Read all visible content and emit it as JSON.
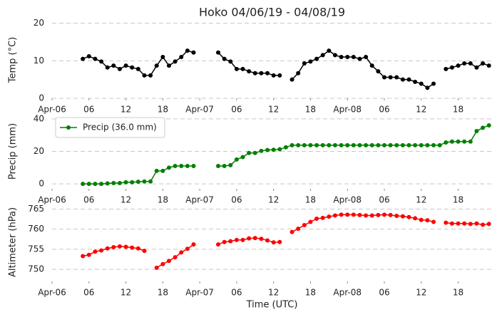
{
  "chart_data": [
    {
      "type": "line",
      "title": "Hoko 04/06/19 - 04/08/19",
      "ylabel": "Temp (°C)",
      "color": "#000000",
      "x": [
        5,
        6,
        7,
        8,
        9,
        10,
        11,
        12,
        13,
        14,
        15,
        16,
        17,
        18,
        19,
        20,
        21,
        22,
        23,
        24,
        25,
        26,
        27,
        28,
        29,
        30,
        31,
        32,
        33,
        34,
        35,
        36,
        37,
        38,
        39,
        40,
        41,
        42,
        43,
        44,
        45,
        46,
        47,
        48,
        49,
        50,
        51,
        52,
        53,
        54,
        55,
        56,
        57,
        58,
        59,
        60,
        61,
        62,
        63,
        64,
        65,
        66,
        67,
        68,
        69,
        70,
        71
      ],
      "values": [
        10.5,
        11.2,
        10.5,
        9.8,
        8.2,
        8.7,
        7.8,
        8.7,
        8.2,
        7.8,
        6.1,
        6.1,
        8.7,
        11,
        8.7,
        9.8,
        11,
        12.7,
        12.2,
        null,
        null,
        null,
        12.2,
        10.5,
        9.8,
        7.8,
        7.8,
        7.2,
        6.7,
        6.7,
        6.7,
        6.1,
        6.1,
        null,
        5.0,
        6.7,
        9.3,
        9.8,
        10.5,
        11.5,
        12.7,
        11.5,
        11,
        11,
        11,
        10.5,
        11,
        8.7,
        7.2,
        5.6,
        5.6,
        5.6,
        5,
        5,
        4.4,
        3.9,
        2.8,
        3.9,
        null,
        7.8,
        8.2,
        8.7,
        9.3,
        9.3,
        8.2,
        9.3,
        8.7
      ],
      "xlim": [
        0,
        71.5
      ],
      "xticks": [
        {
          "value": 0,
          "label": "Apr-06"
        },
        {
          "value": 6,
          "label": "06"
        },
        {
          "value": 12,
          "label": "12"
        },
        {
          "value": 18,
          "label": "18"
        },
        {
          "value": 24,
          "label": "Apr-07"
        },
        {
          "value": 30,
          "label": "06"
        },
        {
          "value": 36,
          "label": "12"
        },
        {
          "value": 42,
          "label": "18"
        },
        {
          "value": 48,
          "label": "Apr-08"
        },
        {
          "value": 54,
          "label": "06"
        },
        {
          "value": 60,
          "label": "12"
        },
        {
          "value": 66,
          "label": "18"
        }
      ],
      "ylim": [
        0,
        20.5
      ],
      "yticks": [
        0,
        10,
        20
      ],
      "grid": true
    },
    {
      "type": "line",
      "ylabel": "Precip (mm)",
      "legend": "upper left",
      "x": [
        5,
        6,
        7,
        8,
        9,
        10,
        11,
        12,
        13,
        14,
        15,
        16,
        17,
        18,
        19,
        20,
        21,
        22,
        23,
        24,
        25,
        26,
        27,
        28,
        29,
        30,
        31,
        32,
        33,
        34,
        35,
        36,
        37,
        38,
        39,
        40,
        41,
        42,
        43,
        44,
        45,
        46,
        47,
        48,
        49,
        50,
        51,
        52,
        53,
        54,
        55,
        56,
        57,
        58,
        59,
        60,
        61,
        62,
        63,
        64,
        65,
        66,
        67,
        68,
        69,
        70,
        71
      ],
      "series": [
        {
          "name": "Precip (36.0 mm)",
          "color": "#008000",
          "values": [
            0,
            0,
            0,
            0,
            0.3,
            0.5,
            0.5,
            1,
            1,
            1.3,
            1.5,
            1.5,
            8,
            8,
            10,
            11,
            11,
            11,
            11,
            null,
            null,
            null,
            11,
            11,
            11.5,
            15,
            16.5,
            19,
            19,
            20.3,
            20.8,
            21,
            21.3,
            22.5,
            23.8,
            23.8,
            23.8,
            23.8,
            23.8,
            23.8,
            23.8,
            23.8,
            23.8,
            23.8,
            23.8,
            23.8,
            23.8,
            23.8,
            23.8,
            23.8,
            23.8,
            23.8,
            23.8,
            23.8,
            23.8,
            23.8,
            23.8,
            23.8,
            23.8,
            25.5,
            26,
            26,
            26,
            26,
            32.5,
            34.5,
            36
          ]
        }
      ],
      "xlim": [
        0,
        71.5
      ],
      "xticks": [
        {
          "value": 0,
          "label": "Apr-06"
        },
        {
          "value": 6,
          "label": "06"
        },
        {
          "value": 12,
          "label": "12"
        },
        {
          "value": 18,
          "label": "18"
        },
        {
          "value": 24,
          "label": "Apr-07"
        },
        {
          "value": 30,
          "label": "06"
        },
        {
          "value": 36,
          "label": "12"
        },
        {
          "value": 42,
          "label": "18"
        },
        {
          "value": 48,
          "label": "Apr-08"
        },
        {
          "value": 54,
          "label": "06"
        },
        {
          "value": 60,
          "label": "12"
        },
        {
          "value": 66,
          "label": "18"
        }
      ],
      "ylim": [
        -3,
        43
      ],
      "yticks": [
        0,
        20,
        40
      ],
      "grid": true
    },
    {
      "type": "line",
      "ylabel": "Altimeter (hPa)",
      "xlabel": "Time (UTC)",
      "color": "#ff0000",
      "x": [
        5,
        6,
        7,
        8,
        9,
        10,
        11,
        12,
        13,
        14,
        15,
        16,
        17,
        18,
        19,
        20,
        21,
        22,
        23,
        24,
        25,
        26,
        27,
        28,
        29,
        30,
        31,
        32,
        33,
        34,
        35,
        36,
        37,
        38,
        39,
        40,
        41,
        42,
        43,
        44,
        45,
        46,
        47,
        48,
        49,
        50,
        51,
        52,
        53,
        54,
        55,
        56,
        57,
        58,
        59,
        60,
        61,
        62,
        63,
        64,
        65,
        66,
        67,
        68,
        69,
        70,
        71
      ],
      "values": [
        753.3,
        753.6,
        754.4,
        754.7,
        755.2,
        755.5,
        755.7,
        755.6,
        755.4,
        755.2,
        754.6,
        null,
        750.4,
        751.3,
        752.1,
        753.0,
        754.2,
        755.1,
        756.2,
        null,
        null,
        null,
        756.2,
        756.8,
        757.0,
        757.3,
        757.3,
        757.7,
        757.8,
        757.6,
        757.2,
        756.7,
        756.8,
        null,
        759.3,
        760.1,
        761.0,
        761.8,
        762.6,
        762.8,
        763.1,
        763.4,
        763.6,
        763.6,
        763.6,
        763.5,
        763.4,
        763.4,
        763.5,
        763.6,
        763.5,
        763.3,
        763.2,
        763.0,
        762.7,
        762.3,
        762.2,
        761.8,
        null,
        761.6,
        761.4,
        761.4,
        761.4,
        761.3,
        761.4,
        761.1,
        761.3
      ],
      "xlim": [
        0,
        71.5
      ],
      "xticks": [
        {
          "value": 0,
          "label": "Apr-06"
        },
        {
          "value": 6,
          "label": "06"
        },
        {
          "value": 12,
          "label": "12"
        },
        {
          "value": 18,
          "label": "18"
        },
        {
          "value": 24,
          "label": "Apr-07"
        },
        {
          "value": 30,
          "label": "06"
        },
        {
          "value": 36,
          "label": "12"
        },
        {
          "value": 42,
          "label": "18"
        },
        {
          "value": 48,
          "label": "Apr-08"
        },
        {
          "value": 54,
          "label": "06"
        },
        {
          "value": 60,
          "label": "12"
        },
        {
          "value": 66,
          "label": "18"
        }
      ],
      "ylim": [
        747,
        766.5
      ],
      "yticks": [
        750,
        755,
        760,
        765
      ],
      "grid": true
    }
  ]
}
